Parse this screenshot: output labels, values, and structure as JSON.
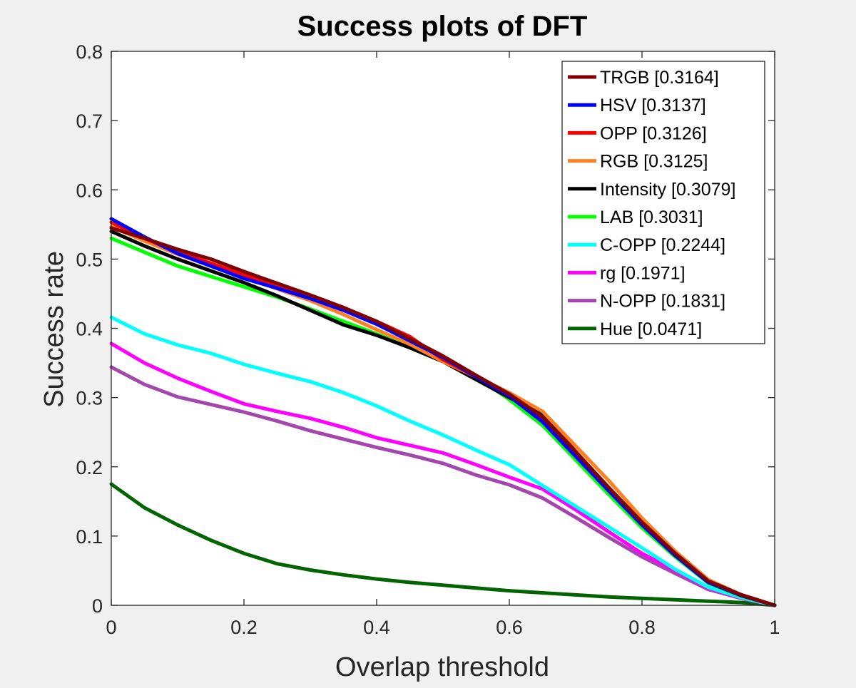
{
  "chart_data": {
    "type": "line",
    "title": "Success plots of DFT",
    "xlabel": "Overlap threshold",
    "ylabel": "Success rate",
    "xlim": [
      0,
      1
    ],
    "ylim": [
      0,
      0.8
    ],
    "xticks": [
      0,
      0.2,
      0.4,
      0.6,
      0.8,
      1
    ],
    "xtick_labels": [
      "0",
      "0.2",
      "0.4",
      "0.6",
      "0.8",
      "1"
    ],
    "yticks": [
      0,
      0.1,
      0.2,
      0.3,
      0.4,
      0.5,
      0.6,
      0.7,
      0.8
    ],
    "ytick_labels": [
      "0",
      "0.1",
      "0.2",
      "0.3",
      "0.4",
      "0.5",
      "0.6",
      "0.7",
      "0.8"
    ],
    "grid": false,
    "legend_position": "top-right",
    "x": [
      0,
      0.05,
      0.1,
      0.15,
      0.2,
      0.25,
      0.3,
      0.35,
      0.4,
      0.45,
      0.5,
      0.55,
      0.6,
      0.65,
      0.7,
      0.75,
      0.8,
      0.85,
      0.9,
      0.95,
      1
    ],
    "series": [
      {
        "name": "TRGB [0.3164]",
        "color": "#800000",
        "values": [
          0.545,
          0.53,
          0.514,
          0.5,
          0.482,
          0.465,
          0.448,
          0.43,
          0.41,
          0.385,
          0.36,
          0.332,
          0.305,
          0.272,
          0.222,
          0.17,
          0.12,
          0.075,
          0.035,
          0.015,
          0.0
        ]
      },
      {
        "name": "HSV [0.3137]",
        "color": "#0000ff",
        "values": [
          0.558,
          0.532,
          0.508,
          0.49,
          0.472,
          0.458,
          0.443,
          0.426,
          0.406,
          0.382,
          0.358,
          0.33,
          0.302,
          0.265,
          0.215,
          0.165,
          0.116,
          0.072,
          0.033,
          0.014,
          0.0
        ]
      },
      {
        "name": "OPP [0.3126]",
        "color": "#ff0000",
        "values": [
          0.553,
          0.53,
          0.51,
          0.494,
          0.477,
          0.462,
          0.447,
          0.43,
          0.41,
          0.388,
          0.355,
          0.33,
          0.305,
          0.27,
          0.22,
          0.17,
          0.118,
          0.073,
          0.034,
          0.014,
          0.0
        ]
      },
      {
        "name": "RGB [0.3125]",
        "color": "#ff8020",
        "values": [
          0.547,
          0.526,
          0.507,
          0.49,
          0.474,
          0.457,
          0.44,
          0.42,
          0.398,
          0.377,
          0.352,
          0.33,
          0.307,
          0.28,
          0.23,
          0.18,
          0.126,
          0.078,
          0.037,
          0.015,
          0.0
        ]
      },
      {
        "name": "Intensity [0.3079]",
        "color": "#000000",
        "values": [
          0.54,
          0.519,
          0.5,
          0.483,
          0.466,
          0.447,
          0.426,
          0.405,
          0.39,
          0.372,
          0.352,
          0.326,
          0.3,
          0.276,
          0.222,
          0.168,
          0.12,
          0.076,
          0.035,
          0.015,
          0.0
        ]
      },
      {
        "name": "LAB [0.3031]",
        "color": "#00ff00",
        "values": [
          0.53,
          0.51,
          0.49,
          0.475,
          0.46,
          0.445,
          0.428,
          0.41,
          0.392,
          0.372,
          0.352,
          0.33,
          0.297,
          0.26,
          0.21,
          0.16,
          0.112,
          0.07,
          0.032,
          0.013,
          0.0
        ]
      },
      {
        "name": "C-OPP [0.2244]",
        "color": "#00ffff",
        "values": [
          0.416,
          0.392,
          0.376,
          0.364,
          0.348,
          0.335,
          0.323,
          0.307,
          0.288,
          0.266,
          0.246,
          0.224,
          0.203,
          0.173,
          0.143,
          0.113,
          0.083,
          0.052,
          0.026,
          0.011,
          0.0
        ]
      },
      {
        "name": "rg [0.1971]",
        "color": "#ff00ff",
        "values": [
          0.378,
          0.35,
          0.328,
          0.309,
          0.291,
          0.28,
          0.27,
          0.257,
          0.242,
          0.231,
          0.22,
          0.203,
          0.185,
          0.168,
          0.138,
          0.106,
          0.075,
          0.05,
          0.025,
          0.01,
          0.0
        ]
      },
      {
        "name": "N-OPP [0.1831]",
        "color": "#a347ad",
        "values": [
          0.344,
          0.319,
          0.301,
          0.29,
          0.279,
          0.266,
          0.252,
          0.24,
          0.228,
          0.217,
          0.205,
          0.188,
          0.174,
          0.155,
          0.127,
          0.098,
          0.07,
          0.046,
          0.023,
          0.01,
          0.0
        ]
      },
      {
        "name": "Hue [0.0471]",
        "color": "#006400",
        "values": [
          0.175,
          0.141,
          0.116,
          0.094,
          0.075,
          0.06,
          0.051,
          0.044,
          0.038,
          0.033,
          0.029,
          0.025,
          0.021,
          0.018,
          0.015,
          0.012,
          0.01,
          0.008,
          0.006,
          0.004,
          0.0
        ]
      }
    ]
  }
}
